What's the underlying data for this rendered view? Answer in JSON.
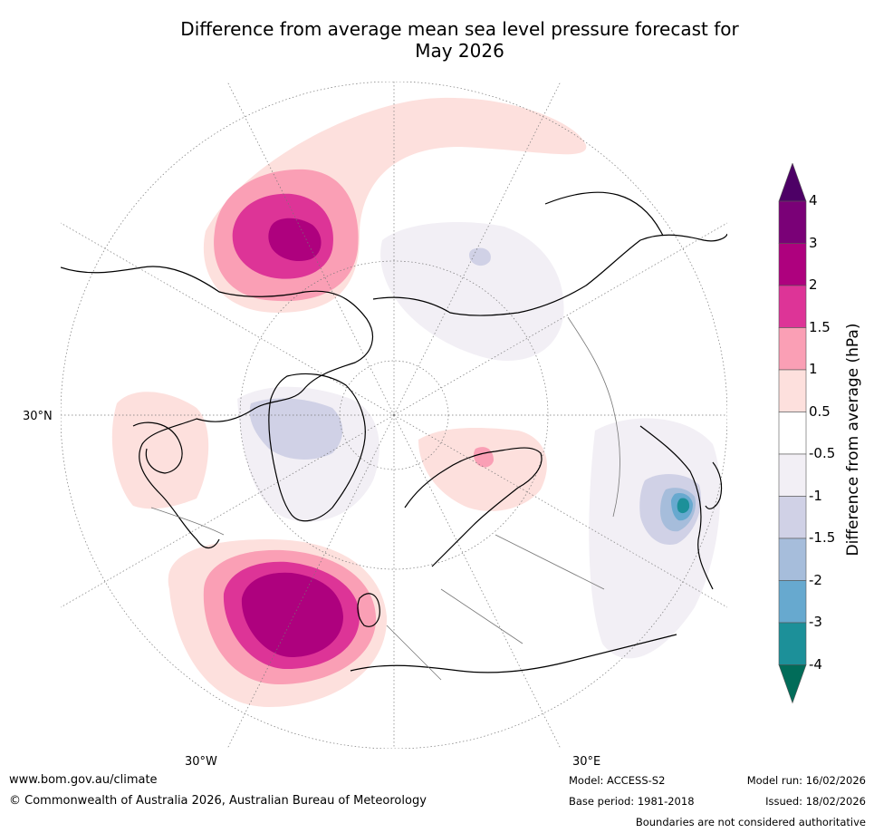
{
  "title": {
    "line1": "Difference from average mean sea level pressure forecast for",
    "line2": "May 2026"
  },
  "map": {
    "projection": "north polar stereographic",
    "lat_labels": {
      "lat30n": "30°N",
      "lon30w": "30°W",
      "lon30e": "30°E"
    }
  },
  "colorbar": {
    "title": "Difference from average (hPa)",
    "ticks": [
      "4",
      "3",
      "2",
      "1.5",
      "1",
      "0.5",
      "-0.5",
      "-1",
      "-1.5",
      "-2",
      "-3",
      "-4"
    ],
    "bins": [
      {
        "color": "#4d0066"
      },
      {
        "color": "#7a0177"
      },
      {
        "color": "#ae017e"
      },
      {
        "color": "#dd3497"
      },
      {
        "color": "#fa9fb5"
      },
      {
        "color": "#fde0dd"
      },
      {
        "color": "#ffffff"
      },
      {
        "color": "#f2eff5"
      },
      {
        "color": "#d0d1e6"
      },
      {
        "color": "#a6bddb"
      },
      {
        "color": "#67a9cf"
      },
      {
        "color": "#1c9099"
      },
      {
        "color": "#016c59"
      }
    ]
  },
  "footer": {
    "website": "www.bom.gov.au/climate",
    "copyright": "© Commonwealth of Australia 2026, Australian Bureau of Meteorology",
    "model": "Model: ACCESS-S2",
    "base_period": "Base period: 1981-2018",
    "model_run": "Model run: 16/02/2026",
    "issued": "Issued: 18/02/2026",
    "disclaimer": "Boundaries are not considered authoritative"
  }
}
